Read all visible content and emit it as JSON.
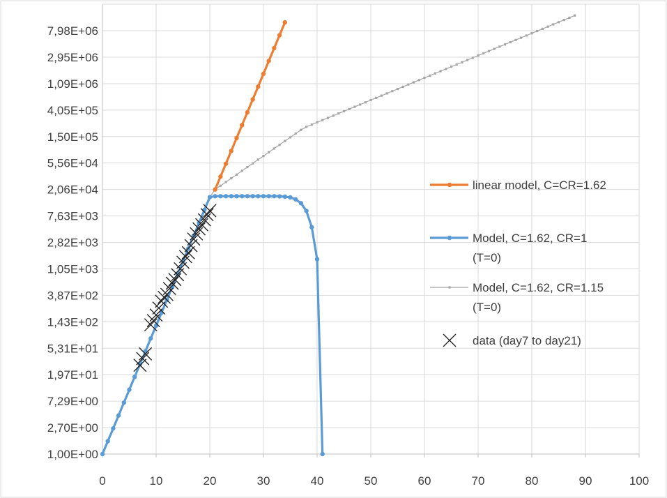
{
  "chart_data": {
    "type": "line",
    "y_scale": "log",
    "x_ticks": [
      "0",
      "10",
      "20",
      "30",
      "40",
      "50",
      "60",
      "70",
      "80",
      "90",
      "100"
    ],
    "xlim": [
      0,
      100
    ],
    "y_ticks": [
      "1,00E+00",
      "2,70E+00",
      "7,29E+00",
      "1,97E+01",
      "5,31E+01",
      "1,43E+02",
      "3,87E+02",
      "1,05E+03",
      "2,82E+03",
      "7,63E+03",
      "2,06E+04",
      "5,56E+04",
      "1,50E+05",
      "4,05E+05",
      "1,09E+06",
      "2,95E+06",
      "7,98E+06"
    ],
    "ylim": [
      1,
      21600000
    ],
    "grid": "major x and y",
    "legend_position": "right",
    "series": [
      {
        "name": "linear model, C=CR=1.62",
        "color": "#ED7D31",
        "marker": "circle",
        "x": [
          21,
          22,
          23,
          24,
          25,
          26,
          27,
          28,
          29,
          30,
          31,
          32,
          33,
          34
        ],
        "y": [
          20600,
          33400,
          54100,
          87600,
          141900,
          229900,
          372000,
          603000,
          977000,
          1583000,
          2565000,
          4155000,
          6730000,
          10900000
        ]
      },
      {
        "name": "Model, C=1.62,  CR=1",
        "name_line2": "(T=0)",
        "color": "#5B9BD5",
        "marker": "circle",
        "x": [
          0,
          1,
          2,
          3,
          4,
          5,
          6,
          7,
          8,
          9,
          10,
          11,
          12,
          13,
          14,
          15,
          16,
          17,
          18,
          19,
          20,
          21,
          22,
          23,
          24,
          25,
          26,
          27,
          28,
          29,
          30,
          31,
          32,
          33,
          34,
          35,
          36,
          37,
          38,
          39,
          40,
          41
        ],
        "y": [
          1,
          1.62,
          2.62,
          4.25,
          6.89,
          11.2,
          18.1,
          29.2,
          47.4,
          76.7,
          124,
          201,
          326,
          528,
          855,
          1380,
          2240,
          3630,
          5890,
          9540,
          15400,
          16000,
          16000,
          16000,
          16000,
          16000,
          16000,
          16000,
          16000,
          16000,
          16000,
          16000,
          16000,
          15900,
          15700,
          15300,
          14200,
          12300,
          9200,
          5000,
          1500,
          1
        ]
      },
      {
        "name": "Model, C=1.62,  CR=1.15",
        "name_line2": "(T=0)",
        "color": "#A5A5A5",
        "marker": "small-square",
        "x": [
          20,
          21,
          22,
          23,
          24,
          25,
          26,
          27,
          28,
          29,
          30,
          31,
          32,
          33,
          34,
          35,
          36,
          37,
          38,
          39,
          40,
          41,
          42,
          43,
          44,
          45,
          46,
          47,
          48,
          49,
          50,
          51,
          52,
          53,
          54,
          55,
          56,
          57,
          58,
          59,
          60,
          61,
          62,
          63,
          64,
          65,
          66,
          67,
          68,
          69,
          70,
          71,
          72,
          73,
          74,
          75,
          76,
          77,
          78,
          79,
          80,
          81,
          82,
          83,
          84,
          85,
          86,
          87,
          88
        ],
        "y": [
          15400,
          20600,
          23700,
          27200,
          31300,
          36000,
          41400,
          47600,
          54800,
          63000,
          72400,
          83300,
          95800,
          110000,
          127000,
          146000,
          168000,
          193000,
          216000,
          235000,
          256000,
          278000,
          302000,
          328000,
          357000,
          388000,
          422000,
          459000,
          499000,
          542000,
          590000,
          641000,
          697000,
          758000,
          824000,
          896000,
          974000,
          1059000,
          1151000,
          1251000,
          1360000,
          1479000,
          1608000,
          1748000,
          1900000,
          2066000,
          2246000,
          2442000,
          2655000,
          2886000,
          3138000,
          3411000,
          3709000,
          4032000,
          4383000,
          4765000,
          5181000,
          5632000,
          6123000,
          6657000,
          7237000,
          7868000,
          8553000,
          9299000,
          10110000,
          10990000,
          11950000,
          12990000,
          14120000
        ]
      },
      {
        "name": "data (day7 to day21)",
        "color": "#262626",
        "marker": "x",
        "x": [
          7,
          7.5,
          8,
          9,
          9.5,
          10,
          10.5,
          11,
          11.5,
          12,
          12.5,
          13,
          13.5,
          14,
          14.5,
          15,
          15.5,
          16,
          16.5,
          17,
          17.5,
          18,
          18.5,
          19,
          19.5,
          20
        ],
        "y": [
          28,
          36,
          43,
          128,
          150,
          185,
          240,
          310,
          360,
          400,
          500,
          610,
          700,
          840,
          1050,
          1340,
          1660,
          1920,
          2500,
          3200,
          3900,
          4700,
          5500,
          6600,
          8000,
          9300
        ]
      }
    ]
  }
}
